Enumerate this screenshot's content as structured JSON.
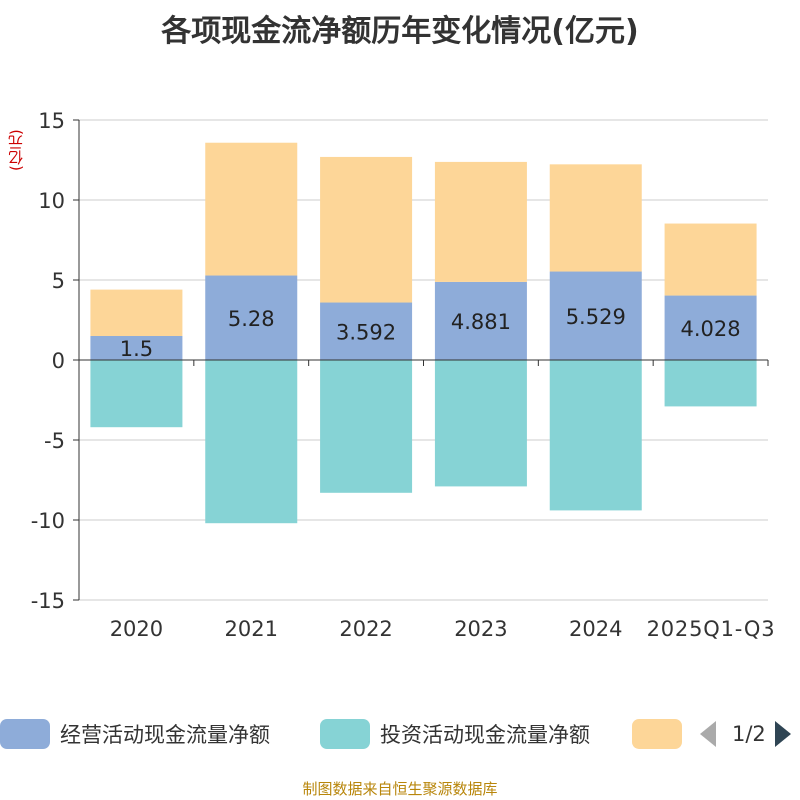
{
  "title": "各项现金流净额历年变化情况(亿元)",
  "unit_label": "(亿元)",
  "source": "制图数据来自恒生聚源数据库",
  "pager": {
    "text": "1/2"
  },
  "colors": {
    "operating": "#8eacd9",
    "investing": "#86d3d5",
    "financing": "#fdd698",
    "axis": "#333333",
    "grid": "#cccccc"
  },
  "chart_data": {
    "type": "bar",
    "stacked": true,
    "categories": [
      "2020",
      "2021",
      "2022",
      "2023",
      "2024",
      "2025Q1-Q3"
    ],
    "series": [
      {
        "name": "经营活动现金流量净额",
        "key": "operating",
        "values": [
          1.5,
          5.28,
          3.592,
          4.881,
          5.529,
          4.028
        ],
        "labels": [
          "1.5",
          "5.28",
          "3.592",
          "4.881",
          "5.529",
          "4.028"
        ],
        "show_labels": true
      },
      {
        "name": "投资活动现金流量净额",
        "key": "investing",
        "values": [
          -4.2,
          -10.2,
          -8.3,
          -7.9,
          -9.4,
          -2.9
        ],
        "show_labels": false
      },
      {
        "name": "",
        "key": "financing",
        "values": [
          2.9,
          8.3,
          9.1,
          7.5,
          6.7,
          4.5
        ],
        "show_labels": false
      }
    ],
    "yticks": [
      "15",
      "10",
      "5",
      "0",
      "-5",
      "-10",
      "-15"
    ],
    "ylim": [
      -15,
      15
    ],
    "ylabel": "(亿元)",
    "grid": true,
    "legend": "bottom"
  }
}
